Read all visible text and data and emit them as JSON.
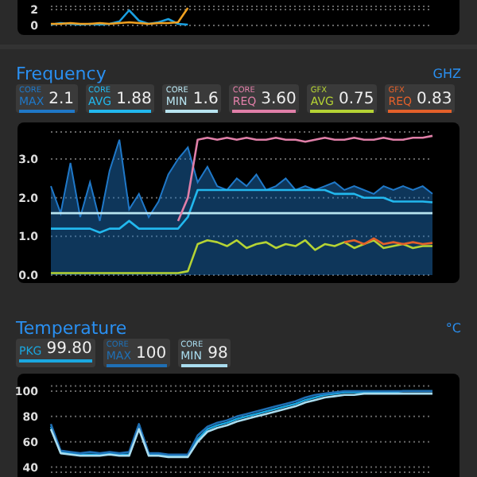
{
  "chart_data": [
    {
      "type": "line",
      "categories": [
        null,
        null,
        null,
        null,
        null,
        null,
        null,
        null,
        null,
        null,
        null,
        null,
        null,
        null,
        null,
        null,
        null,
        null,
        null,
        null,
        null,
        null,
        null,
        null,
        null,
        null,
        null,
        null,
        null,
        null,
        null,
        null,
        null,
        null,
        null,
        null,
        null,
        null,
        null,
        null
      ],
      "ylim": [
        0,
        2.4
      ],
      "yticks": [
        0,
        2
      ],
      "grid": "y",
      "series": [
        {
          "color": "#1a9fe0",
          "values": [
            0.1,
            0.3,
            0.2,
            0.1,
            0.2,
            0.1,
            0.2,
            0.5,
            1.9,
            0.6,
            0.2,
            0.4,
            0.8,
            0.2,
            0.1,
            null,
            null,
            null,
            null,
            null,
            null,
            null,
            null,
            null,
            null,
            null,
            null,
            null,
            null,
            null,
            null,
            null,
            null,
            null,
            null,
            null,
            null,
            null,
            null,
            null
          ]
        },
        {
          "color": "#f0a020",
          "values": [
            0.2,
            0.2,
            0.3,
            0.2,
            0.2,
            0.3,
            0.2,
            0.3,
            0.4,
            0.3,
            0.2,
            0.3,
            0.3,
            0.4,
            2.2,
            null,
            null,
            null,
            null,
            null,
            null,
            null,
            null,
            null,
            null,
            null,
            null,
            null,
            null,
            null,
            null,
            null,
            null,
            null,
            null,
            null,
            null,
            null,
            null,
            null
          ]
        }
      ]
    },
    {
      "type": "line",
      "title": "Frequency",
      "ylabel": "GHZ",
      "legend": "top",
      "grid": "y",
      "categories": [
        null,
        null,
        null,
        null,
        null,
        null,
        null,
        null,
        null,
        null,
        null,
        null,
        null,
        null,
        null,
        null,
        null,
        null,
        null,
        null,
        null,
        null,
        null,
        null,
        null,
        null,
        null,
        null,
        null,
        null,
        null,
        null,
        null,
        null,
        null,
        null,
        null,
        null,
        null,
        null
      ],
      "ylim": [
        0,
        3.7
      ],
      "yticks": [
        {
          "value": 0,
          "label": "0.0"
        },
        {
          "value": 1,
          "label": "1.0"
        },
        {
          "value": 2,
          "label": "2.0"
        },
        {
          "value": 3,
          "label": "3.0"
        }
      ],
      "annotations": [
        "2.1",
        "1.88",
        "1.6",
        "3.60",
        "0.75",
        "0.83"
      ],
      "series": [
        {
          "name": "CORE MAX",
          "type": "area",
          "color": "#1f78c8",
          "values": [
            2.3,
            1.6,
            2.9,
            1.5,
            2.4,
            1.4,
            2.7,
            3.5,
            1.7,
            2.1,
            1.5,
            1.9,
            2.6,
            3.0,
            3.3,
            2.4,
            2.8,
            2.3,
            2.2,
            2.5,
            2.3,
            2.6,
            2.2,
            2.3,
            2.5,
            2.2,
            2.3,
            2.2,
            2.3,
            2.4,
            2.2,
            2.3,
            2.2,
            2.1,
            2.3,
            2.2,
            2.3,
            2.2,
            2.3,
            2.1
          ]
        },
        {
          "name": "CORE AVG",
          "color": "#22b8ee",
          "values": [
            1.2,
            1.2,
            1.2,
            1.2,
            1.2,
            1.1,
            1.2,
            1.2,
            1.4,
            1.2,
            1.2,
            1.2,
            1.2,
            1.2,
            1.5,
            2.2,
            2.2,
            2.2,
            2.2,
            2.2,
            2.2,
            2.2,
            2.2,
            2.2,
            2.2,
            2.2,
            2.2,
            2.2,
            2.2,
            2.1,
            2.1,
            2.1,
            2.0,
            2.0,
            2.0,
            1.9,
            1.9,
            1.9,
            1.9,
            1.88
          ]
        },
        {
          "name": "CORE MIN",
          "color": "#b8e4f0",
          "values": [
            1.6,
            1.6,
            1.6,
            1.6,
            1.6,
            1.6,
            1.6,
            1.6,
            1.6,
            1.6,
            1.6,
            1.6,
            1.6,
            1.6,
            1.6,
            1.6,
            1.6,
            1.6,
            1.6,
            1.6,
            1.6,
            1.6,
            1.6,
            1.6,
            1.6,
            1.6,
            1.6,
            1.6,
            1.6,
            1.6,
            1.6,
            1.6,
            1.6,
            1.6,
            1.6,
            1.6,
            1.6,
            1.6,
            1.6,
            1.6
          ]
        },
        {
          "name": "CORE REQ",
          "color": "#e07fa8",
          "values": [
            null,
            null,
            null,
            null,
            null,
            null,
            null,
            null,
            null,
            null,
            null,
            null,
            null,
            1.4,
            2.0,
            3.5,
            3.55,
            3.5,
            3.55,
            3.5,
            3.55,
            3.5,
            3.5,
            3.55,
            3.5,
            3.5,
            3.45,
            3.5,
            3.55,
            3.5,
            3.5,
            3.55,
            3.5,
            3.5,
            3.55,
            3.5,
            3.5,
            3.55,
            3.55,
            3.6
          ]
        },
        {
          "name": "GFX AVG",
          "color": "#b5d334",
          "values": [
            0.05,
            0.05,
            0.05,
            0.05,
            0.05,
            0.05,
            0.05,
            0.05,
            0.05,
            0.05,
            0.05,
            0.05,
            0.05,
            0.05,
            0.1,
            0.8,
            0.9,
            0.85,
            0.75,
            0.9,
            0.7,
            0.8,
            0.85,
            0.7,
            0.8,
            0.75,
            0.9,
            0.65,
            0.8,
            0.75,
            0.85,
            0.7,
            0.8,
            0.9,
            0.7,
            0.75,
            0.8,
            0.7,
            0.75,
            0.75
          ]
        },
        {
          "name": "GFX REQ",
          "color": "#e4602a",
          "values": [
            null,
            null,
            null,
            null,
            null,
            null,
            null,
            null,
            null,
            null,
            null,
            null,
            null,
            null,
            null,
            null,
            null,
            null,
            null,
            null,
            null,
            null,
            null,
            null,
            null,
            null,
            null,
            null,
            null,
            null,
            0.85,
            0.9,
            0.8,
            0.95,
            0.8,
            0.85,
            0.8,
            0.85,
            0.8,
            0.83
          ]
        }
      ]
    },
    {
      "type": "line",
      "title": "Temperature",
      "ylabel": "°C",
      "legend": "top",
      "grid": "y",
      "categories": [
        null,
        null,
        null,
        null,
        null,
        null,
        null,
        null,
        null,
        null,
        null,
        null,
        null,
        null,
        null,
        null,
        null,
        null,
        null,
        null,
        null,
        null,
        null,
        null,
        null,
        null,
        null,
        null,
        null,
        null,
        null,
        null,
        null,
        null,
        null,
        null,
        null,
        null,
        null,
        null
      ],
      "ylim": [
        36,
        104
      ],
      "yticks": [
        40,
        60,
        80,
        100
      ],
      "annotations": [
        "99.80",
        "100",
        "98"
      ],
      "series": [
        {
          "name": "PKG",
          "color": "#1aa7e0",
          "values": [
            72,
            52,
            51,
            50,
            50,
            50,
            51,
            50,
            50,
            73,
            50,
            50,
            49,
            49,
            49,
            62,
            70,
            73,
            75,
            78,
            80,
            82,
            84,
            86,
            88,
            90,
            93,
            95,
            97,
            98,
            99,
            99,
            99,
            99,
            99,
            99,
            100,
            100,
            100,
            100
          ]
        },
        {
          "name": "CORE MAX",
          "color": "#1f6fb4",
          "values": [
            74,
            53,
            52,
            51,
            52,
            51,
            52,
            51,
            52,
            74,
            51,
            51,
            50,
            50,
            50,
            65,
            72,
            75,
            77,
            80,
            82,
            84,
            86,
            88,
            90,
            92,
            95,
            97,
            98,
            99,
            100,
            100,
            100,
            100,
            100,
            100,
            100,
            100,
            100,
            100
          ]
        },
        {
          "name": "CORE MIN",
          "color": "#a9dcee",
          "values": [
            70,
            51,
            50,
            49,
            49,
            49,
            50,
            49,
            49,
            70,
            49,
            49,
            48,
            48,
            48,
            60,
            68,
            71,
            73,
            76,
            78,
            80,
            82,
            84,
            86,
            88,
            91,
            93,
            95,
            96,
            97,
            97,
            98,
            98,
            98,
            98,
            98,
            98,
            98,
            98
          ]
        }
      ]
    }
  ]
}
